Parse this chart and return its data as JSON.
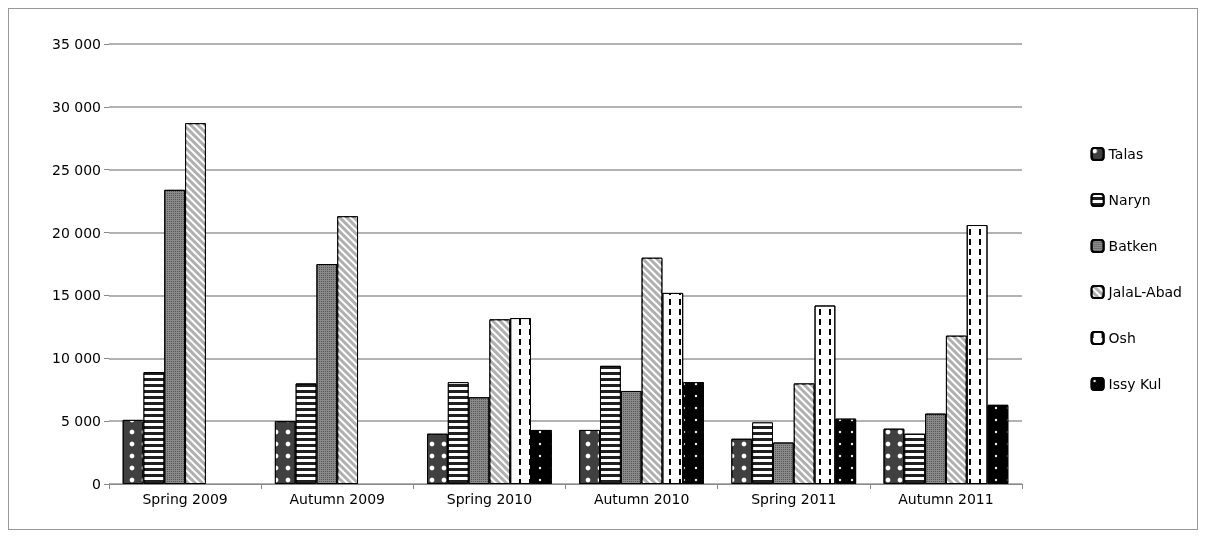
{
  "chart_data": {
    "type": "bar",
    "categories": [
      "Spring 2009",
      "Autumn 2009",
      "Spring 2010",
      "Autumn 2010",
      "Spring 2011",
      "Autumn 2011"
    ],
    "series": [
      {
        "name": "Talas",
        "color": "#404040",
        "values": [
          5100,
          5000,
          4000,
          4300,
          3600,
          4400
        ]
      },
      {
        "name": "Naryn",
        "color": "#202020",
        "values": [
          8900,
          8000,
          8100,
          9400,
          4900,
          4000
        ]
      },
      {
        "name": "Batken",
        "color": "#8a8a8a",
        "values": [
          23400,
          17500,
          6900,
          7400,
          3300,
          5600
        ]
      },
      {
        "name": "JalaL-Abad",
        "color": "#b0b0b0",
        "values": [
          28700,
          21300,
          13100,
          18000,
          8000,
          11800
        ]
      },
      {
        "name": "Osh",
        "color": "#ffffff",
        "values": [
          null,
          null,
          13200,
          15200,
          14200,
          20600
        ]
      },
      {
        "name": "Issy Kul",
        "color": "#000000",
        "values": [
          null,
          null,
          4300,
          8100,
          5200,
          6300
        ]
      }
    ],
    "ylim": [
      0,
      35000
    ],
    "yticks": [
      {
        "value": 0,
        "label": "0"
      },
      {
        "value": 5000,
        "label": "5 000"
      },
      {
        "value": 10000,
        "label": "10 000"
      },
      {
        "value": 15000,
        "label": "15 000"
      },
      {
        "value": 20000,
        "label": "20 000"
      },
      {
        "value": 25000,
        "label": "25 000"
      },
      {
        "value": 30000,
        "label": "30 000"
      },
      {
        "value": 35000,
        "label": "35 000"
      }
    ],
    "grid": "y",
    "legend": "right"
  }
}
